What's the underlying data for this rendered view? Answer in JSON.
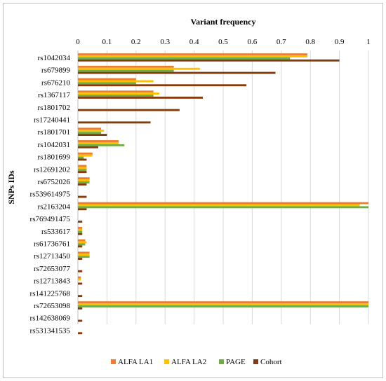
{
  "chart_data": {
    "type": "bar",
    "orientation": "horizontal",
    "title": "Variant frequency",
    "xlabel": "",
    "ylabel": "SNPs IDs",
    "xlim": [
      0,
      1
    ],
    "xticks": [
      "0",
      "0.1",
      "0.2",
      "0.3",
      "0.4",
      "0.5",
      "0.6",
      "0.7",
      "0.8",
      "0.9",
      "1"
    ],
    "grid": true,
    "legend_position": "bottom",
    "categories": [
      "rs1042034",
      "rs679899",
      "rs676210",
      "rs1367117",
      "rs1801702",
      "rs17240441",
      "rs1801701",
      "rs1042031",
      "rs1801699",
      "rs12691202",
      "rs6752026",
      "rs539614975",
      "rs2163204",
      "rs769491475",
      "rs533617",
      "rs61736761",
      "rs12713450",
      "rs72653077",
      "rs12713843",
      "rs141225768",
      "rs72653098",
      "rs142638069",
      "rs531341535"
    ],
    "series": [
      {
        "name": "ALFA LA1",
        "color": "#ED7D31",
        "values": [
          0.79,
          0.33,
          0.2,
          0.26,
          0,
          0,
          0.08,
          0.14,
          0.05,
          0.03,
          0.04,
          0,
          1.0,
          0,
          0.015,
          0.025,
          0.04,
          0,
          0.01,
          0,
          1.0,
          0,
          0
        ]
      },
      {
        "name": "ALFA LA2",
        "color": "#FFC000",
        "values": [
          0.79,
          0.42,
          0.26,
          0.28,
          0,
          0,
          0.09,
          0.14,
          0.05,
          0.03,
          0.04,
          0,
          0.97,
          0,
          0.015,
          0.03,
          0.04,
          0,
          0.01,
          0,
          1.0,
          0,
          0
        ]
      },
      {
        "name": "PAGE",
        "color": "#70AD47",
        "values": [
          0.73,
          0.33,
          0.2,
          0.26,
          0,
          0,
          0.08,
          0.16,
          0.02,
          0.03,
          0.04,
          0,
          1.0,
          0,
          0.015,
          0.025,
          0.04,
          0,
          0,
          0,
          1.0,
          0,
          0
        ]
      },
      {
        "name": "Cohort",
        "color": "#843C0C",
        "values": [
          0.9,
          0.68,
          0.58,
          0.43,
          0.35,
          0.25,
          0.1,
          0.07,
          0.03,
          0.03,
          0.03,
          0.03,
          0.03,
          0.015,
          0.015,
          0.015,
          0.015,
          0.015,
          0.015,
          0.015,
          0.015,
          0.015,
          0.015
        ]
      }
    ]
  }
}
